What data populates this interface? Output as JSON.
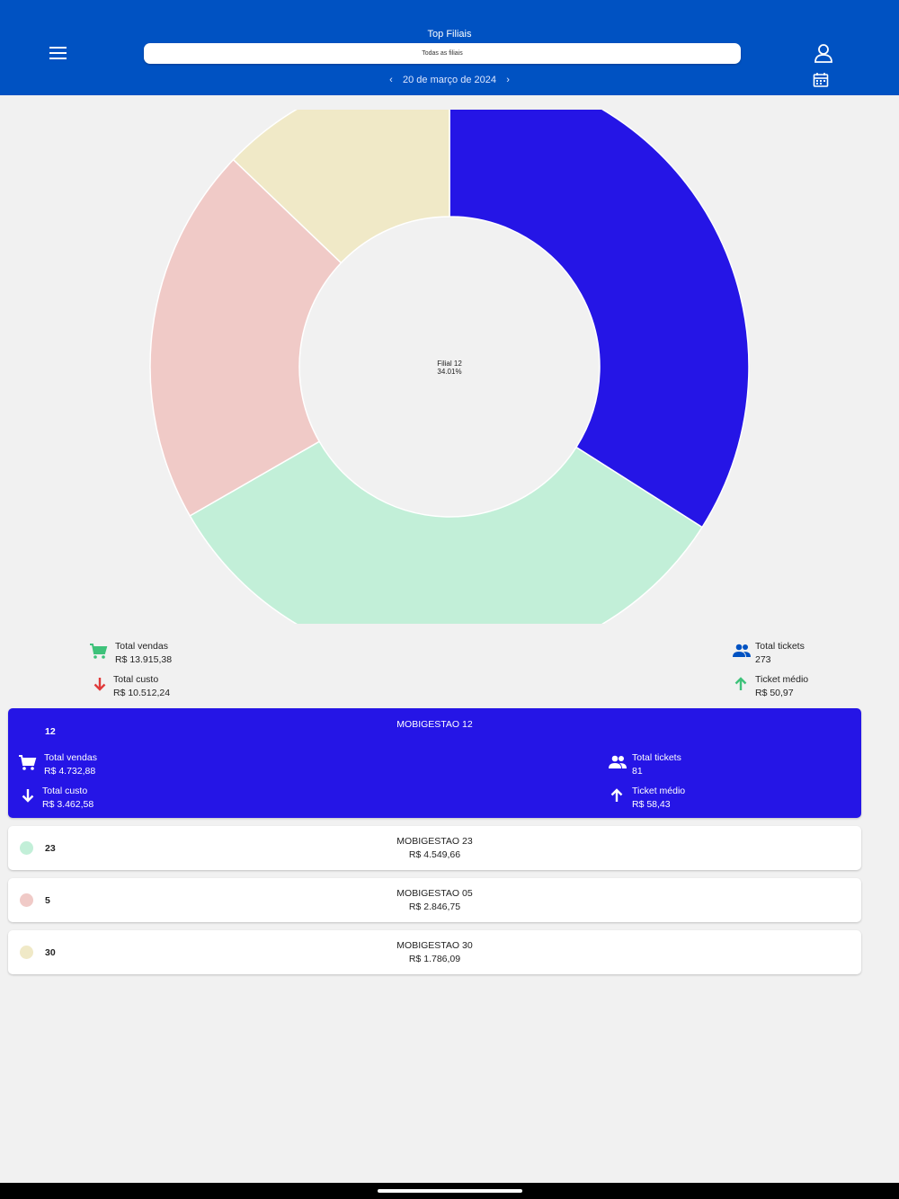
{
  "header": {
    "title": "Top Filiais",
    "filter_value": "Todas as filiais",
    "date": "20 de março de 2024",
    "prev_symbol": "‹",
    "next_symbol": "›",
    "bg_color": "#0052c2"
  },
  "chart_data": {
    "type": "pie",
    "subtype": "donut",
    "center_label": "Filial 12",
    "center_value": "34.01%",
    "slices": [
      {
        "label": "12",
        "percent": 34.01,
        "color": "#2515e6"
      },
      {
        "label": "23",
        "percent": 32.69,
        "color": "#c2efd8"
      },
      {
        "label": "5",
        "percent": 20.46,
        "color": "#f0cac7"
      },
      {
        "label": "30",
        "percent": 12.84,
        "color": "#f0e9c7"
      }
    ]
  },
  "summary": {
    "total_vendas_label": "Total vendas",
    "total_vendas_value": "R$ 13.915,38",
    "total_custo_label": "Total custo",
    "total_custo_value": "R$ 10.512,24",
    "total_tickets_label": "Total tickets",
    "total_tickets_value": "273",
    "ticket_medio_label": "Ticket médio",
    "ticket_medio_value": "R$ 50,97"
  },
  "branches": [
    {
      "code": "12",
      "name": "MOBIGESTAO 12",
      "color": "#2515e6",
      "total_vendas_label": "Total vendas",
      "total_vendas_value": "R$ 4.732,88",
      "total_custo_label": "Total custo",
      "total_custo_value": "R$ 3.462,58",
      "total_tickets_label": "Total tickets",
      "total_tickets_value": "81",
      "ticket_medio_label": "Ticket médio",
      "ticket_medio_value": "R$ 58,43"
    },
    {
      "code": "23",
      "name": "MOBIGESTAO 23",
      "value": "R$ 4.549,66",
      "color": "#c2efd8"
    },
    {
      "code": "5",
      "name": "MOBIGESTAO 05",
      "value": "R$ 2.846,75",
      "color": "#f0cac7"
    },
    {
      "code": "30",
      "name": "MOBIGESTAO 30",
      "value": "R$ 1.786,09",
      "color": "#f0e9c7"
    }
  ]
}
